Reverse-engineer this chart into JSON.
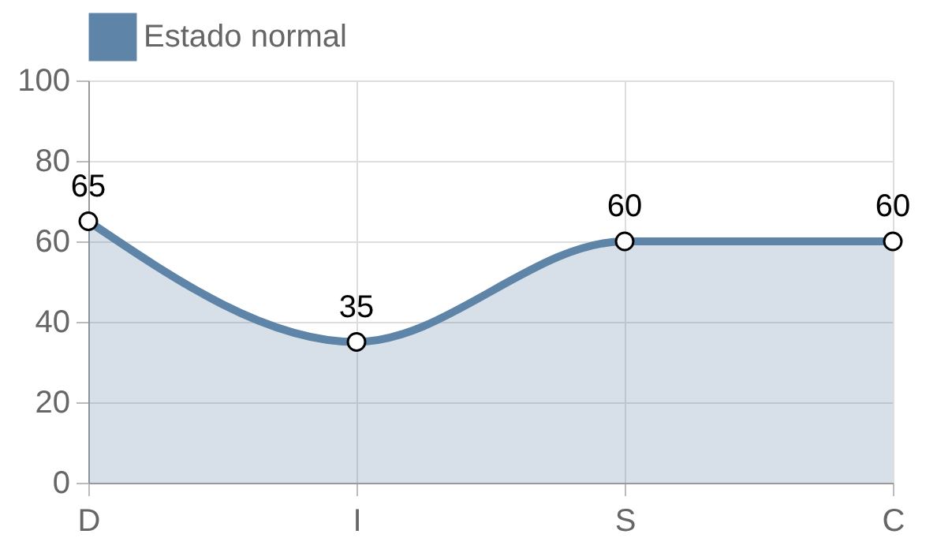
{
  "chart_data": {
    "type": "area",
    "categories": [
      "D",
      "I",
      "S",
      "C"
    ],
    "series": [
      {
        "name": "Estado normal",
        "color": "#5e84a8",
        "values": [
          65,
          35,
          60,
          60
        ]
      }
    ],
    "ylim": [
      0,
      100
    ],
    "yticks": [
      0,
      20,
      40,
      60,
      80,
      100
    ],
    "grid": true,
    "legend": "top",
    "marker": "circle",
    "data_labels": true
  }
}
